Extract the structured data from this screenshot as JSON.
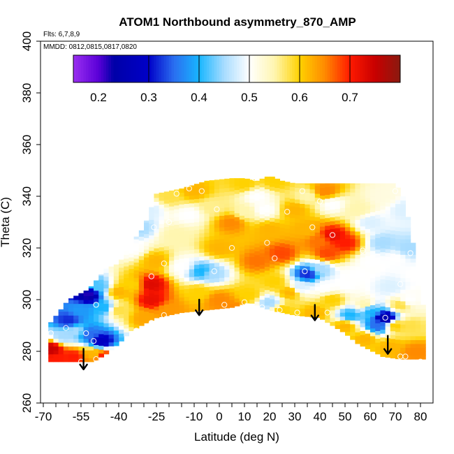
{
  "chart_data": {
    "type": "heatmap",
    "title": "ATOM1 Northbound asymmetry_870_AMP",
    "flights_label": "Flts: 6,7,8,9",
    "dates_label": "MMDD: 0812,0815,0817,0820",
    "xlabel": "Latitude (deg N)",
    "ylabel": "Theta (C)",
    "xlim": [
      -70,
      80
    ],
    "ylim": [
      260,
      400
    ],
    "x_tick_labels": [
      "-70",
      "-55",
      "-40",
      "-25",
      "-10",
      "0",
      "10",
      "20",
      "30",
      "40",
      "50",
      "60",
      "70",
      "80"
    ],
    "x_tick_values": [
      -70,
      -55,
      -40,
      -25,
      -10,
      0,
      10,
      20,
      30,
      40,
      50,
      60,
      70,
      80
    ],
    "x_minor_ticks": [
      -65,
      -60,
      -50,
      -45,
      -35,
      -30,
      -20,
      -15,
      -5,
      5,
      15,
      25,
      35,
      45,
      55,
      65,
      75
    ],
    "y_tick_labels": [
      "260",
      "280",
      "300",
      "320",
      "340",
      "360",
      "380",
      "400"
    ],
    "y_tick_values": [
      260,
      280,
      300,
      320,
      340,
      360,
      380,
      400
    ],
    "colorbar": {
      "range": [
        0.15,
        0.8
      ],
      "tick_values": [
        0.2,
        0.3,
        0.4,
        0.5,
        0.6,
        0.7
      ],
      "tick_labels": [
        "0.2",
        "0.3",
        "0.4",
        "0.5",
        "0.6",
        "0.7"
      ],
      "divider_values": [
        0.3,
        0.4,
        0.5,
        0.6,
        0.7
      ],
      "stops": [
        {
          "v": 0.15,
          "c": "#9a2ff0"
        },
        {
          "v": 0.2,
          "c": "#5a00d8"
        },
        {
          "v": 0.23,
          "c": "#0000a8"
        },
        {
          "v": 0.3,
          "c": "#0000c8"
        },
        {
          "v": 0.35,
          "c": "#2a6ef0"
        },
        {
          "v": 0.4,
          "c": "#18b6ff"
        },
        {
          "v": 0.45,
          "c": "#a8dcff"
        },
        {
          "v": 0.5,
          "c": "#ffffff"
        },
        {
          "v": 0.55,
          "c": "#fff6b0"
        },
        {
          "v": 0.6,
          "c": "#ffd200"
        },
        {
          "v": 0.65,
          "c": "#ff8a00"
        },
        {
          "v": 0.7,
          "c": "#ff1a00"
        },
        {
          "v": 0.75,
          "c": "#c80000"
        },
        {
          "v": 0.8,
          "c": "#8a1a10"
        }
      ]
    },
    "field_envelope": {
      "upper": [
        [
          -68,
          290
        ],
        [
          -60,
          300
        ],
        [
          -52,
          304
        ],
        [
          -45,
          312
        ],
        [
          -40,
          314
        ],
        [
          -35,
          322
        ],
        [
          -30,
          328
        ],
        [
          -25,
          341
        ],
        [
          -15,
          343
        ],
        [
          -5,
          346
        ],
        [
          5,
          347
        ],
        [
          10,
          347
        ],
        [
          15,
          346
        ],
        [
          20,
          348
        ],
        [
          25,
          346
        ],
        [
          30,
          345
        ],
        [
          35,
          345
        ],
        [
          40,
          345
        ],
        [
          50,
          345
        ],
        [
          60,
          345
        ],
        [
          70,
          345
        ],
        [
          73,
          340
        ],
        [
          75,
          332
        ],
        [
          77,
          322
        ],
        [
          79,
          308
        ],
        [
          80,
          298
        ]
      ],
      "lower": [
        [
          80,
          277
        ],
        [
          72,
          277
        ],
        [
          65,
          278
        ],
        [
          55,
          283
        ],
        [
          50,
          287
        ],
        [
          45,
          290
        ],
        [
          40,
          293
        ],
        [
          30,
          294
        ],
        [
          20,
          296
        ],
        [
          12,
          299
        ],
        [
          5,
          297
        ],
        [
          -5,
          296
        ],
        [
          -15,
          295
        ],
        [
          -25,
          293
        ],
        [
          -35,
          288
        ],
        [
          -40,
          283
        ],
        [
          -45,
          279
        ],
        [
          -50,
          276
        ],
        [
          -55,
          276
        ],
        [
          -68,
          276
        ]
      ]
    },
    "field_points": [
      {
        "x": -67,
        "y": 281,
        "v": 0.75
      },
      {
        "x": -62,
        "y": 286,
        "v": 0.45
      },
      {
        "x": -57,
        "y": 288,
        "v": 0.45
      },
      {
        "x": -52,
        "y": 287,
        "v": 0.35
      },
      {
        "x": -47,
        "y": 284,
        "v": 0.28
      },
      {
        "x": -50,
        "y": 279,
        "v": 0.62
      },
      {
        "x": -46,
        "y": 278,
        "v": 0.7
      },
      {
        "x": -58,
        "y": 278,
        "v": 0.7
      },
      {
        "x": -65,
        "y": 277,
        "v": 0.7
      },
      {
        "x": -55,
        "y": 296,
        "v": 0.38
      },
      {
        "x": -60,
        "y": 292,
        "v": 0.32
      },
      {
        "x": -52,
        "y": 302,
        "v": 0.22
      },
      {
        "x": -46,
        "y": 297,
        "v": 0.4
      },
      {
        "x": -48,
        "y": 305,
        "v": 0.42
      },
      {
        "x": -40,
        "y": 296,
        "v": 0.58
      },
      {
        "x": -40,
        "y": 303,
        "v": 0.62
      },
      {
        "x": -35,
        "y": 306,
        "v": 0.6
      },
      {
        "x": -27,
        "y": 306,
        "v": 0.73
      },
      {
        "x": -27,
        "y": 300,
        "v": 0.72
      },
      {
        "x": -25,
        "y": 315,
        "v": 0.62
      },
      {
        "x": -35,
        "y": 320,
        "v": 0.5
      },
      {
        "x": -32,
        "y": 328,
        "v": 0.45
      },
      {
        "x": -28,
        "y": 335,
        "v": 0.48
      },
      {
        "x": -30,
        "y": 293,
        "v": 0.63
      },
      {
        "x": -20,
        "y": 296,
        "v": 0.64
      },
      {
        "x": -20,
        "y": 340,
        "v": 0.58
      },
      {
        "x": -10,
        "y": 342,
        "v": 0.62
      },
      {
        "x": -3,
        "y": 336,
        "v": 0.56
      },
      {
        "x": -12,
        "y": 333,
        "v": 0.5
      },
      {
        "x": -17,
        "y": 325,
        "v": 0.55
      },
      {
        "x": -15,
        "y": 313,
        "v": 0.5
      },
      {
        "x": -7,
        "y": 311,
        "v": 0.4
      },
      {
        "x": -3,
        "y": 310,
        "v": 0.45
      },
      {
        "x": 0,
        "y": 320,
        "v": 0.62
      },
      {
        "x": -8,
        "y": 303,
        "v": 0.6
      },
      {
        "x": 0,
        "y": 300,
        "v": 0.65
      },
      {
        "x": 5,
        "y": 297,
        "v": 0.65
      },
      {
        "x": 5,
        "y": 330,
        "v": 0.65
      },
      {
        "x": 10,
        "y": 334,
        "v": 0.55
      },
      {
        "x": 15,
        "y": 340,
        "v": 0.5
      },
      {
        "x": 18,
        "y": 335,
        "v": 0.5
      },
      {
        "x": 10,
        "y": 345,
        "v": 0.6
      },
      {
        "x": 22,
        "y": 346,
        "v": 0.6
      },
      {
        "x": 20,
        "y": 327,
        "v": 0.62
      },
      {
        "x": 15,
        "y": 315,
        "v": 0.66
      },
      {
        "x": 25,
        "y": 318,
        "v": 0.68
      },
      {
        "x": 22,
        "y": 307,
        "v": 0.6
      },
      {
        "x": 12,
        "y": 302,
        "v": 0.6
      },
      {
        "x": 20,
        "y": 299,
        "v": 0.45
      },
      {
        "x": 25,
        "y": 296,
        "v": 0.6
      },
      {
        "x": 28,
        "y": 303,
        "v": 0.62
      },
      {
        "x": 30,
        "y": 335,
        "v": 0.62
      },
      {
        "x": 35,
        "y": 340,
        "v": 0.55
      },
      {
        "x": 35,
        "y": 327,
        "v": 0.62
      },
      {
        "x": 40,
        "y": 323,
        "v": 0.66
      },
      {
        "x": 45,
        "y": 325,
        "v": 0.72
      },
      {
        "x": 50,
        "y": 322,
        "v": 0.7
      },
      {
        "x": 43,
        "y": 318,
        "v": 0.68
      },
      {
        "x": 35,
        "y": 310,
        "v": 0.32
      },
      {
        "x": 40,
        "y": 312,
        "v": 0.45
      },
      {
        "x": 32,
        "y": 305,
        "v": 0.48
      },
      {
        "x": 42,
        "y": 305,
        "v": 0.5
      },
      {
        "x": 38,
        "y": 295,
        "v": 0.62
      },
      {
        "x": 45,
        "y": 300,
        "v": 0.6
      },
      {
        "x": 50,
        "y": 306,
        "v": 0.5
      },
      {
        "x": 55,
        "y": 310,
        "v": 0.5
      },
      {
        "x": 45,
        "y": 337,
        "v": 0.5
      },
      {
        "x": 55,
        "y": 335,
        "v": 0.55
      },
      {
        "x": 42,
        "y": 342,
        "v": 0.65
      },
      {
        "x": 60,
        "y": 330,
        "v": 0.48
      },
      {
        "x": 65,
        "y": 322,
        "v": 0.45
      },
      {
        "x": 70,
        "y": 316,
        "v": 0.5
      },
      {
        "x": 68,
        "y": 305,
        "v": 0.48
      },
      {
        "x": 72,
        "y": 298,
        "v": 0.58
      },
      {
        "x": 60,
        "y": 315,
        "v": 0.5
      },
      {
        "x": 58,
        "y": 298,
        "v": 0.55
      },
      {
        "x": 52,
        "y": 294,
        "v": 0.4
      },
      {
        "x": 60,
        "y": 296,
        "v": 0.4
      },
      {
        "x": 66,
        "y": 293,
        "v": 0.24
      },
      {
        "x": 63,
        "y": 290,
        "v": 0.35
      },
      {
        "x": 70,
        "y": 290,
        "v": 0.6
      },
      {
        "x": 75,
        "y": 300,
        "v": 0.5
      },
      {
        "x": 76,
        "y": 290,
        "v": 0.58
      },
      {
        "x": 78,
        "y": 280,
        "v": 0.65
      },
      {
        "x": 68,
        "y": 282,
        "v": 0.62
      },
      {
        "x": 58,
        "y": 285,
        "v": 0.62
      },
      {
        "x": 50,
        "y": 290,
        "v": 0.62
      },
      {
        "x": 75,
        "y": 320,
        "v": 0.45
      },
      {
        "x": 74,
        "y": 335,
        "v": 0.48
      },
      {
        "x": 65,
        "y": 340,
        "v": 0.52
      },
      {
        "x": 78,
        "y": 310,
        "v": 0.5
      }
    ],
    "station_points": [
      {
        "x": -67,
        "y": 287
      },
      {
        "x": -61,
        "y": 289
      },
      {
        "x": -53,
        "y": 287
      },
      {
        "x": -50,
        "y": 284
      },
      {
        "x": -55,
        "y": 276
      },
      {
        "x": -49,
        "y": 277
      },
      {
        "x": -49,
        "y": 298
      },
      {
        "x": -33,
        "y": 288
      },
      {
        "x": -27,
        "y": 291
      },
      {
        "x": -22,
        "y": 294
      },
      {
        "x": -27,
        "y": 309
      },
      {
        "x": -22,
        "y": 314
      },
      {
        "x": -26,
        "y": 328
      },
      {
        "x": -20,
        "y": 330
      },
      {
        "x": -17,
        "y": 341
      },
      {
        "x": -12,
        "y": 343
      },
      {
        "x": -7,
        "y": 342
      },
      {
        "x": -12,
        "y": 333
      },
      {
        "x": -1,
        "y": 335
      },
      {
        "x": -2,
        "y": 311
      },
      {
        "x": 2,
        "y": 298
      },
      {
        "x": 5,
        "y": 320
      },
      {
        "x": 10,
        "y": 299
      },
      {
        "x": 14,
        "y": 347
      },
      {
        "x": 17,
        "y": 297
      },
      {
        "x": 19,
        "y": 322
      },
      {
        "x": 22,
        "y": 316
      },
      {
        "x": 24,
        "y": 296
      },
      {
        "x": 27,
        "y": 334
      },
      {
        "x": 31,
        "y": 295
      },
      {
        "x": 33,
        "y": 342
      },
      {
        "x": 34,
        "y": 311
      },
      {
        "x": 37,
        "y": 328
      },
      {
        "x": 40,
        "y": 338
      },
      {
        "x": 43,
        "y": 295
      },
      {
        "x": 45,
        "y": 325
      },
      {
        "x": 57,
        "y": 319
      },
      {
        "x": 66,
        "y": 293
      },
      {
        "x": 70,
        "y": 342
      },
      {
        "x": 72,
        "y": 306
      },
      {
        "x": 72,
        "y": 278
      },
      {
        "x": 74,
        "y": 278
      },
      {
        "x": 80,
        "y": 276
      },
      {
        "x": 76,
        "y": 318
      },
      {
        "x": 50,
        "y": 284
      }
    ],
    "arrows": [
      {
        "x": -54,
        "from": 281,
        "to": 273
      },
      {
        "x": -8,
        "from": 300,
        "to": 294
      },
      {
        "x": 38,
        "from": 298,
        "to": 292
      },
      {
        "x": 67,
        "from": 286,
        "to": 279
      }
    ]
  }
}
